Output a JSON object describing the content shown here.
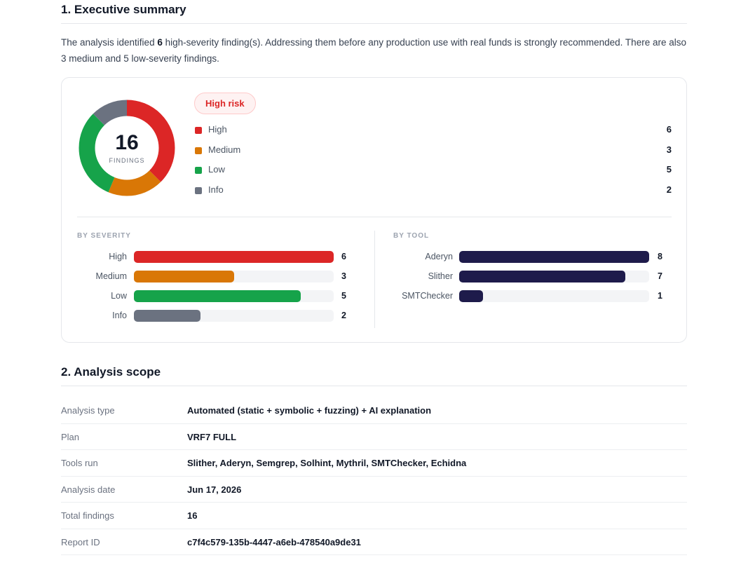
{
  "section1": {
    "title": "1. Executive summary",
    "intro_pre": "The analysis identified ",
    "intro_bold": "6",
    "intro_post": " high-severity finding(s). Addressing them before any production use with real funds is strongly recommended. There are also 3 medium and 5 low-severity findings."
  },
  "summary": {
    "total": "16",
    "total_caption": "FINDINGS",
    "risk_label": "High risk",
    "legend": [
      {
        "label": "High",
        "count": "6",
        "color": "#dc2626"
      },
      {
        "label": "Medium",
        "count": "3",
        "color": "#d97706"
      },
      {
        "label": "Low",
        "count": "5",
        "color": "#16a34a"
      },
      {
        "label": "Info",
        "count": "2",
        "color": "#6b7280"
      }
    ]
  },
  "chart_data": [
    {
      "type": "pie",
      "categories": [
        "High",
        "Medium",
        "Low",
        "Info"
      ],
      "values": [
        6,
        3,
        5,
        2
      ],
      "colors": [
        "#dc2626",
        "#d97706",
        "#16a34a",
        "#6b7280"
      ]
    },
    {
      "type": "bar",
      "title": "BY SEVERITY",
      "categories": [
        "High",
        "Medium",
        "Low",
        "Info"
      ],
      "values": [
        6,
        3,
        5,
        2
      ],
      "max": 6,
      "colors": [
        "#dc2626",
        "#d97706",
        "#16a34a",
        "#6b7280"
      ]
    },
    {
      "type": "bar",
      "title": "BY TOOL",
      "categories": [
        "Aderyn",
        "Slither",
        "SMTChecker"
      ],
      "values": [
        8,
        7,
        1
      ],
      "max": 8,
      "colors": [
        "#1e1b4b",
        "#1e1b4b",
        "#1e1b4b"
      ]
    }
  ],
  "section2": {
    "title": "2. Analysis scope",
    "rows": [
      {
        "key": "Analysis type",
        "value": "Automated (static + symbolic + fuzzing) + AI explanation"
      },
      {
        "key": "Plan",
        "value": "VRF7 FULL"
      },
      {
        "key": "Tools run",
        "value": "Slither, Aderyn, Semgrep, Solhint, Mythril, SMTChecker, Echidna"
      },
      {
        "key": "Analysis date",
        "value": "Jun 17, 2026"
      },
      {
        "key": "Total findings",
        "value": "16"
      },
      {
        "key": "Report ID",
        "value": "c7f4c579-135b-4447-a6eb-478540a9de31"
      }
    ]
  }
}
